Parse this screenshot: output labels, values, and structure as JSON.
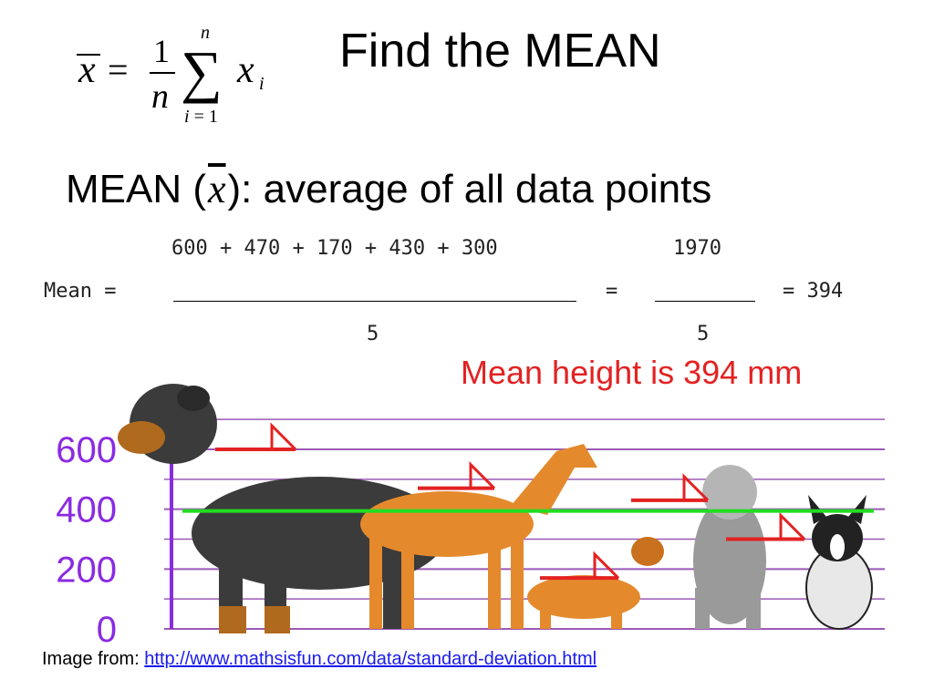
{
  "title": "Find the MEAN",
  "definition": {
    "prefix": "MEAN (",
    "symbol": "x",
    "suffix": "): average of all data points"
  },
  "equation": {
    "label": "Mean =",
    "numerator": "600 + 470 + 170 + 430 + 300",
    "denominator": "5",
    "equals": "=",
    "sum": "1970",
    "sum_denominator": "5",
    "result": "= 394"
  },
  "caption": "Mean height is 394 mm",
  "source": {
    "prefix": "Image from: ",
    "link": "http://www.mathsisfun.com/data/standard-deviation.html"
  },
  "chart_data": {
    "type": "bar",
    "categories": [
      "",
      "",
      "",
      "",
      ""
    ],
    "values": [
      600,
      470,
      170,
      430,
      300
    ],
    "ylim": [
      0,
      700
    ],
    "y_ticks": [
      "0",
      "200",
      "400",
      "600"
    ],
    "mean": 394,
    "colors": {
      "axis": "#8a2be2",
      "grid": "#9b59b6",
      "mean_line": "#22dd22",
      "marker": "#e32222"
    }
  }
}
